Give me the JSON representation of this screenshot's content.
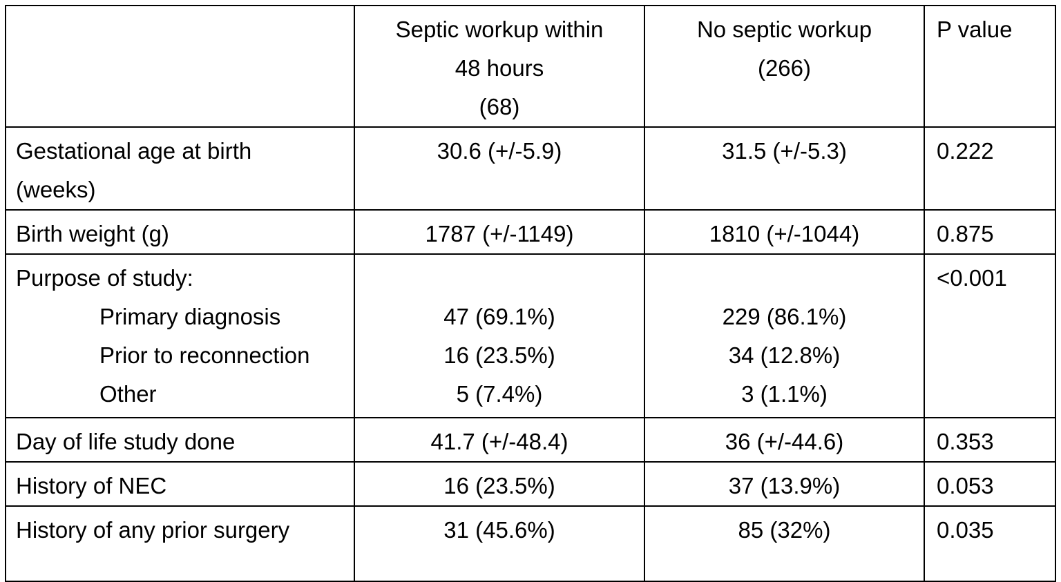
{
  "table": {
    "header": {
      "col1": "",
      "col2_lines": [
        "Septic workup within",
        "48 hours",
        "(68)"
      ],
      "col3_lines": [
        "No septic workup",
        "(266)"
      ],
      "col4": "P value"
    },
    "rows": [
      {
        "label_lines": [
          "Gestational age at birth",
          "(weeks)"
        ],
        "septic": "30.6 (+/-5.9)",
        "no_septic": "31.5 (+/-5.3)",
        "p_value": "0.222"
      },
      {
        "label": "Birth weight (g)",
        "septic": "1787 (+/-1149)",
        "no_septic": "1810 (+/-1044)",
        "p_value": "0.875"
      },
      {
        "label": "Purpose of study:",
        "p_value": "<0.001",
        "subrows": [
          {
            "label": "Primary diagnosis",
            "septic": "47 (69.1%)",
            "no_septic": "229 (86.1%)"
          },
          {
            "label": "Prior to reconnection",
            "septic": "16 (23.5%)",
            "no_septic": "34 (12.8%)"
          },
          {
            "label": "Other",
            "septic": "5 (7.4%)",
            "no_septic": "3 (1.1%)"
          }
        ]
      },
      {
        "label": "Day of life study done",
        "septic": "41.7 (+/-48.4)",
        "no_septic": "36 (+/-44.6)",
        "p_value": "0.353"
      },
      {
        "label": "History of NEC",
        "septic": "16 (23.5%)",
        "no_septic": "37 (13.9%)",
        "p_value": "0.053"
      },
      {
        "label": "History of any prior surgery",
        "septic": "31 (45.6%)",
        "no_septic": "85 (32%)",
        "p_value": "0.035"
      }
    ]
  }
}
